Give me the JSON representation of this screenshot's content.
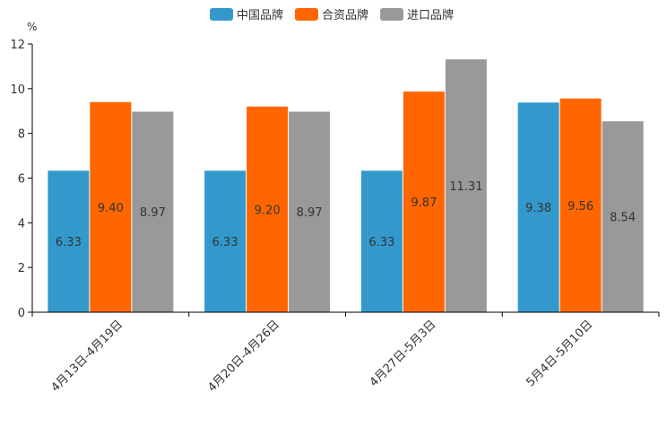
{
  "chart_data": {
    "type": "bar",
    "unit": "%",
    "categories": [
      "4月13日-4月19日",
      "4月20日-4月26日",
      "4月27日-5月3日",
      "5月4日-5月10日"
    ],
    "series": [
      {
        "name": "中国品牌",
        "color": "#3399cc",
        "values": [
          6.33,
          6.33,
          6.33,
          9.38
        ],
        "labels": [
          "6.33",
          "6.33",
          "6.33",
          "9.38"
        ]
      },
      {
        "name": "合资品牌",
        "color": "#ff6600",
        "values": [
          9.4,
          9.2,
          9.87,
          9.56
        ],
        "labels": [
          "9.40",
          "9.20",
          "9.87",
          "9.56"
        ]
      },
      {
        "name": "进口品牌",
        "color": "#999999",
        "values": [
          8.97,
          8.97,
          11.31,
          8.54
        ],
        "labels": [
          "8.97",
          "8.97",
          "11.31",
          "8.54"
        ]
      }
    ],
    "ylim": [
      0,
      12
    ],
    "yticks": [
      "0",
      "2",
      "4",
      "6",
      "8",
      "10",
      "12"
    ],
    "legend": "top-center",
    "grid": false
  }
}
